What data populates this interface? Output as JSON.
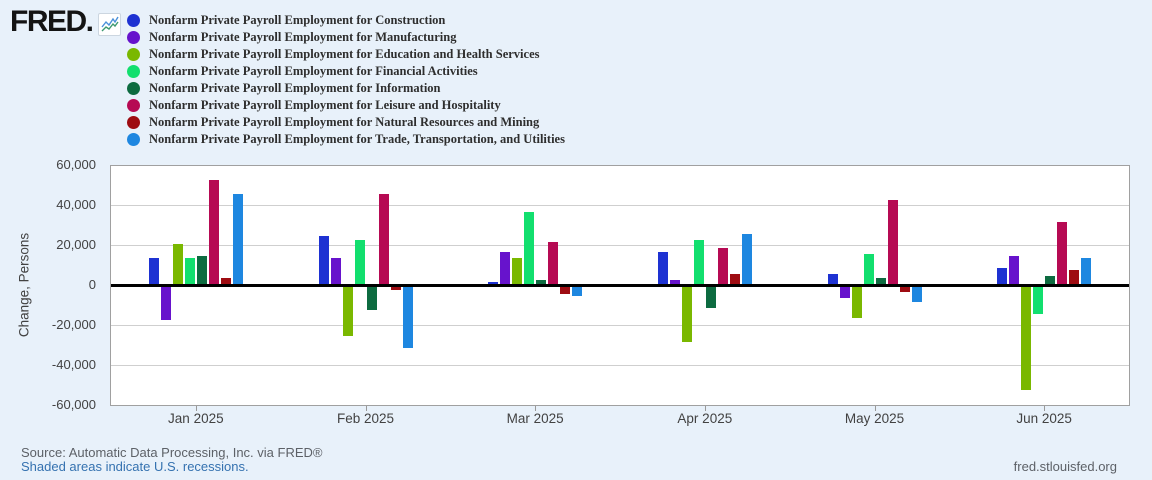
{
  "brand": {
    "logo_text": "FRED",
    "logo_mark": "."
  },
  "chart_data": {
    "type": "bar",
    "title": "",
    "ylabel": "Change, Persons",
    "ylim": [
      -60000,
      60000
    ],
    "ytick_step": 20000,
    "ytick_labels": [
      "60,000",
      "40,000",
      "20,000",
      "0",
      "-20,000",
      "-40,000",
      "-60,000"
    ],
    "grid": true,
    "zero_line": true,
    "legend_position": "top-left",
    "categories": [
      "Jan 2025",
      "Feb 2025",
      "Mar 2025",
      "Apr 2025",
      "May 2025",
      "Jun 2025"
    ],
    "series": [
      {
        "name": "Nonfarm Private Payroll Employment for Construction",
        "color": "#1e32d2",
        "values": [
          14000,
          25000,
          2000,
          17000,
          6000,
          9000
        ]
      },
      {
        "name": "Nonfarm Private Payroll Employment for Manufacturing",
        "color": "#6713cc",
        "values": [
          -17000,
          14000,
          17000,
          3000,
          -6000,
          15000
        ]
      },
      {
        "name": "Nonfarm Private Payroll Employment for Education and Health Services",
        "color": "#7ab800",
        "values": [
          21000,
          -25000,
          14000,
          -28000,
          -16000,
          -52000
        ]
      },
      {
        "name": "Nonfarm Private Payroll Employment for Financial Activities",
        "color": "#12df6e",
        "values": [
          14000,
          23000,
          37000,
          23000,
          16000,
          -14000
        ]
      },
      {
        "name": "Nonfarm Private Payroll Employment for Information",
        "color": "#0d6b40",
        "values": [
          15000,
          -12000,
          3000,
          -11000,
          4000,
          5000
        ]
      },
      {
        "name": "Nonfarm Private Payroll Employment for Leisure and Hospitality",
        "color": "#b60a53",
        "values": [
          53000,
          46000,
          22000,
          19000,
          43000,
          32000
        ]
      },
      {
        "name": "Nonfarm Private Payroll Employment for Natural Resources and Mining",
        "color": "#9e0c12",
        "values": [
          4000,
          -2000,
          -4000,
          6000,
          -3000,
          8000
        ]
      },
      {
        "name": "Nonfarm Private Payroll Employment for Trade, Transportation, and Utilities",
        "color": "#1e87e0",
        "values": [
          46000,
          -31000,
          -5000,
          26000,
          -8000,
          14000
        ]
      }
    ]
  },
  "footer": {
    "source": "Source: Automatic Data Processing, Inc. via FRED®",
    "recession_note": "Shaded areas indicate U.S. recessions.",
    "site": "fred.stlouisfed.org"
  }
}
